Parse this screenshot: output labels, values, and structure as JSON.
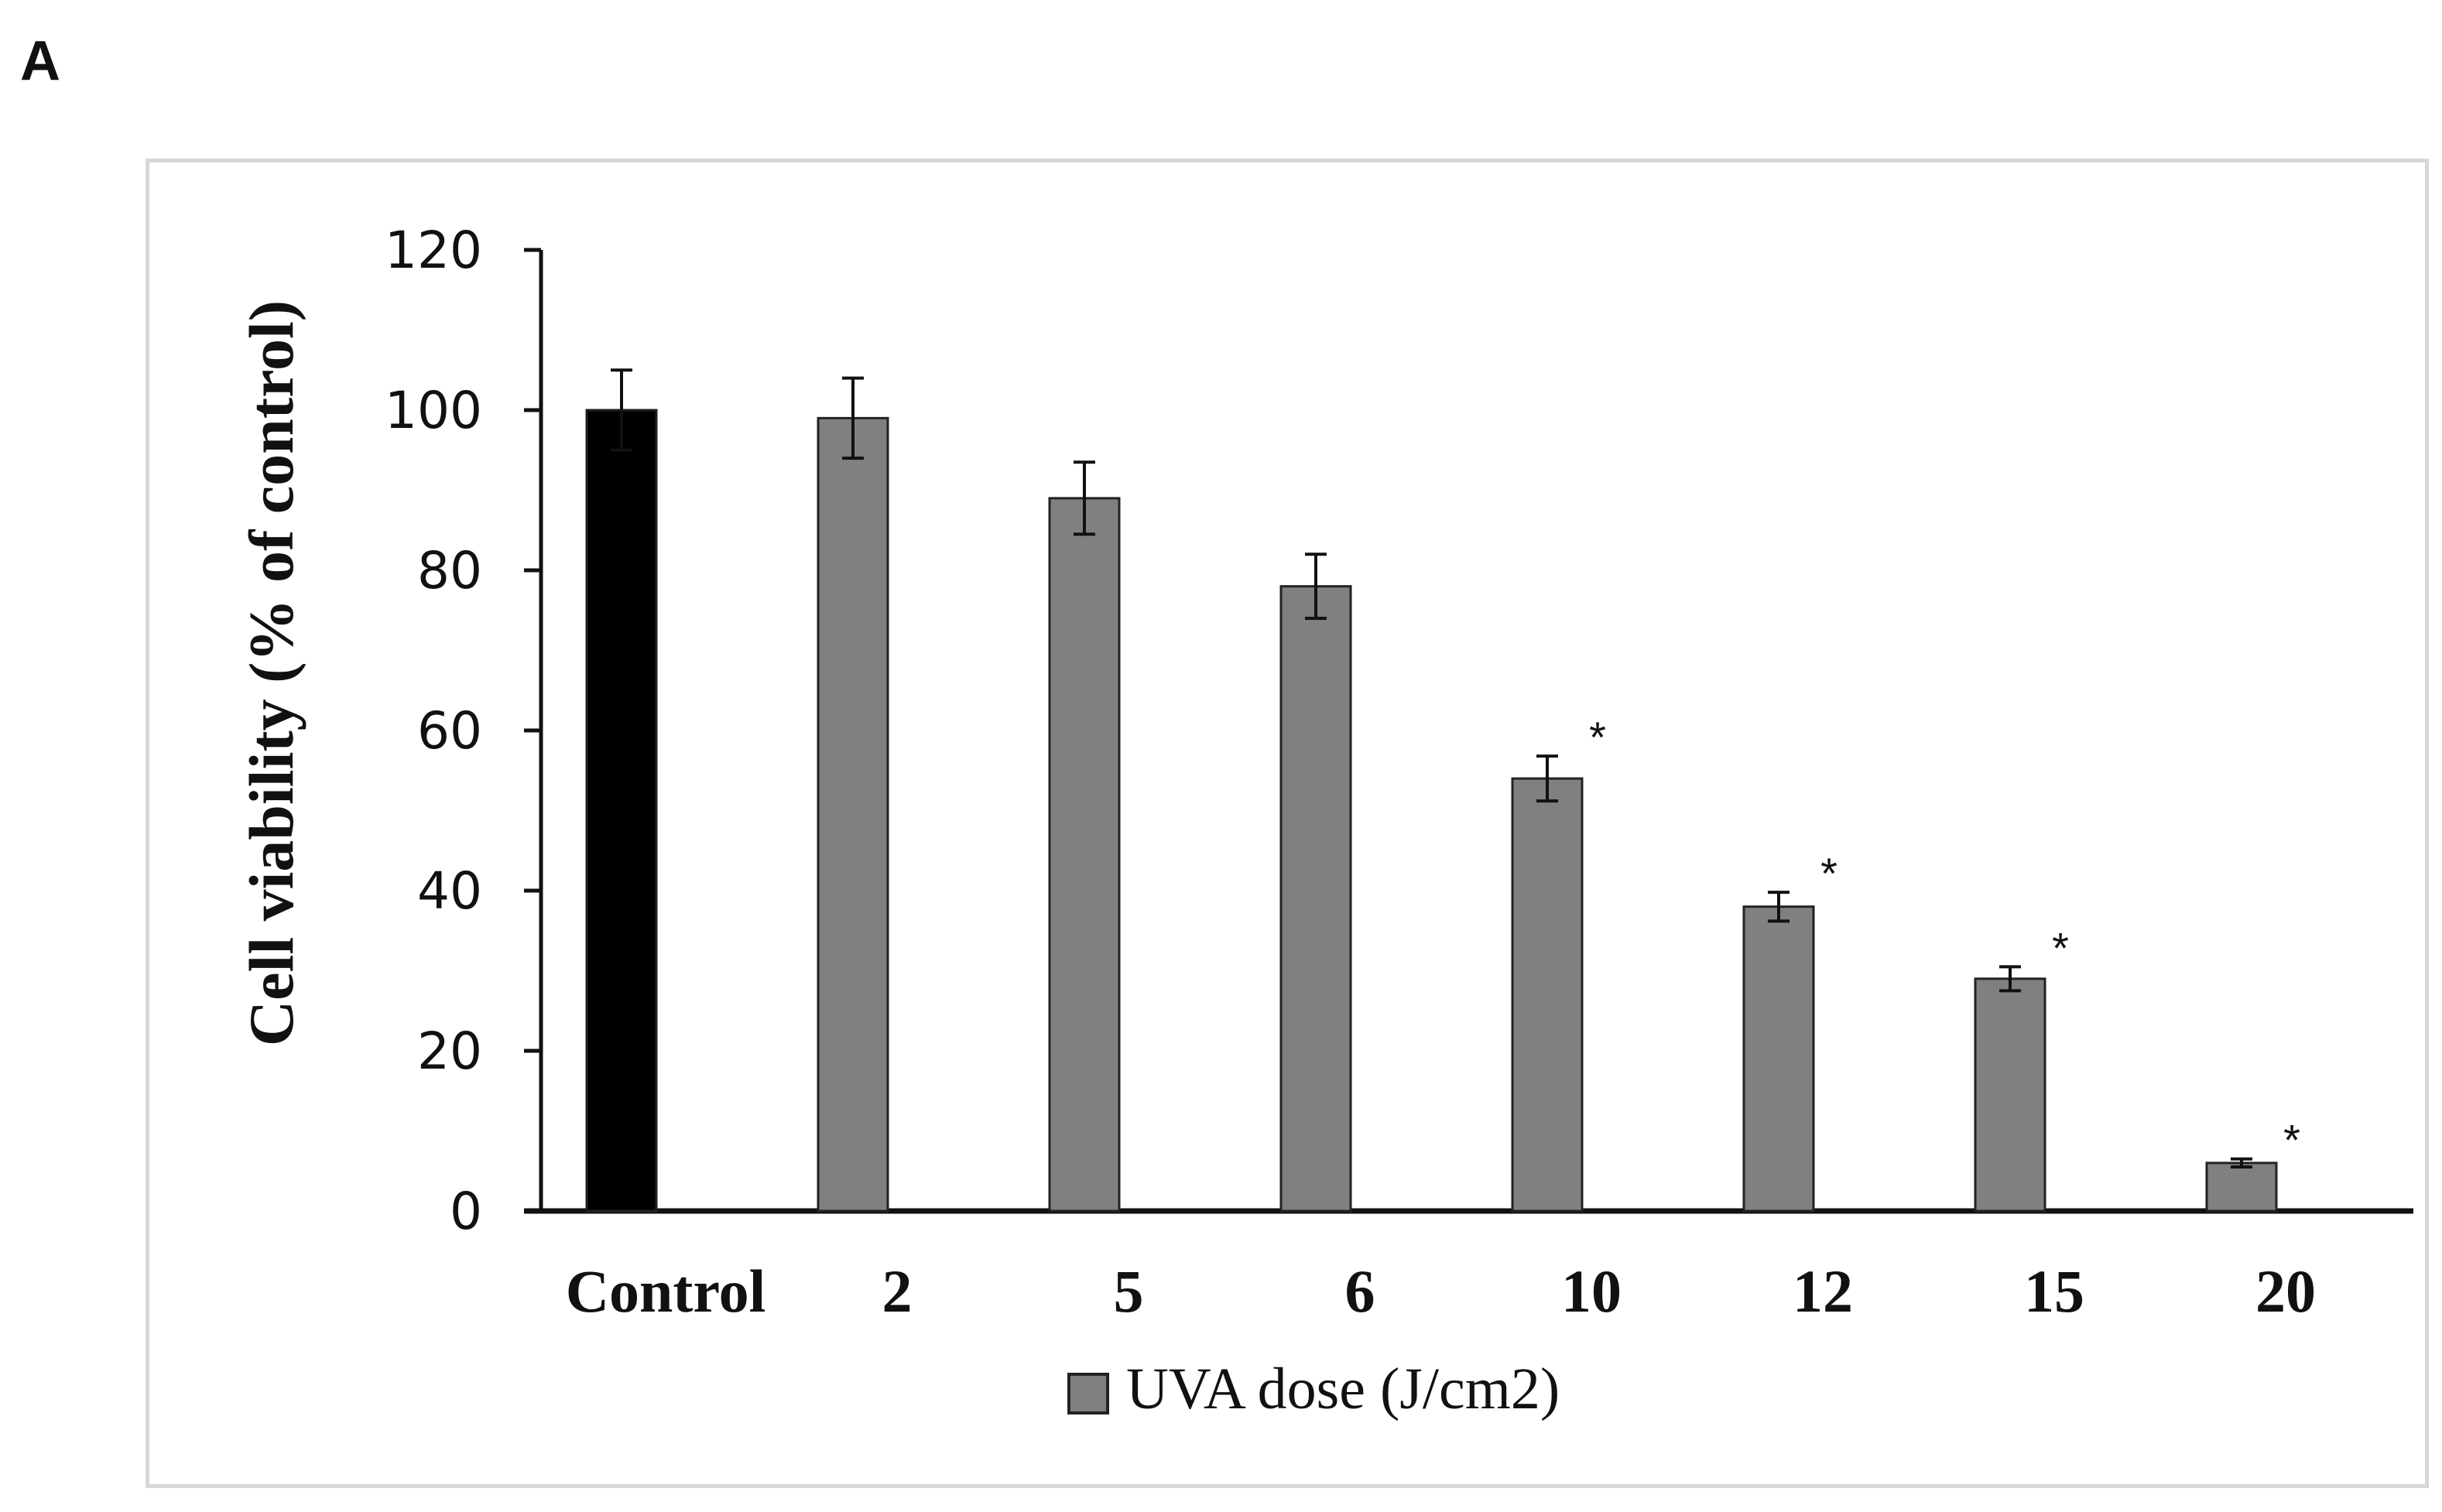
{
  "panel_label": "A",
  "chart_data": {
    "type": "bar",
    "title": "",
    "xlabel": "",
    "ylabel": "Cell viability (% of control)",
    "ylim": [
      0,
      120
    ],
    "yticks": [
      0,
      20,
      40,
      60,
      80,
      100,
      120
    ],
    "categories": [
      "Control",
      "2",
      "5",
      "6",
      "10",
      "12",
      "15",
      "20"
    ],
    "values": [
      100,
      99,
      89,
      78,
      54,
      38,
      29,
      6
    ],
    "error_high": [
      105,
      104,
      93.5,
      82,
      56.8,
      39.8,
      30.5,
      6.5
    ],
    "error_low": [
      95,
      94,
      84.5,
      74,
      51.2,
      36.2,
      27.5,
      5.5
    ],
    "significance": [
      "",
      "",
      "",
      "",
      "*",
      "*",
      "*",
      "*"
    ],
    "bar_colors": [
      "#000000",
      "#808080",
      "#808080",
      "#808080",
      "#808080",
      "#808080",
      "#808080",
      "#808080"
    ],
    "legend": [
      {
        "label": "UVA dose  (J/cm2)",
        "color": "#808080"
      }
    ],
    "legend_position": "bottom"
  }
}
